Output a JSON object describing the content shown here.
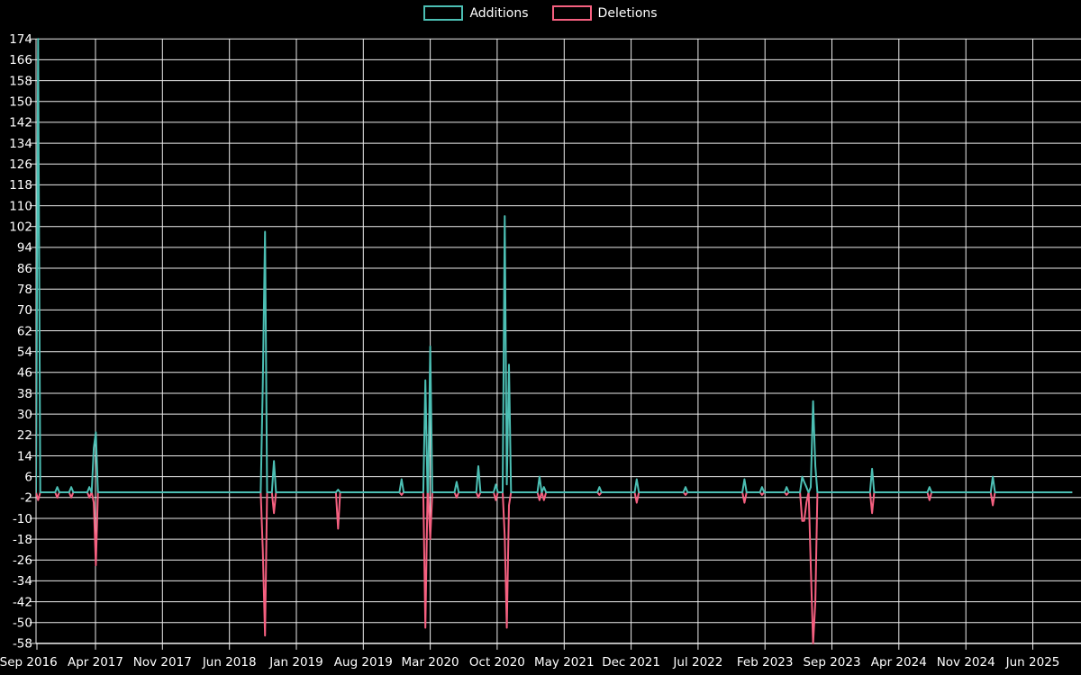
{
  "legend": {
    "items": [
      {
        "label": "Additions",
        "color": "#4cbfb4"
      },
      {
        "label": "Deletions",
        "color": "#f56080"
      }
    ]
  },
  "colors": {
    "background": "#000000",
    "grid": "#ededed",
    "text": "#ffffff",
    "additions": "#4cbfb4",
    "deletions": "#f56080"
  },
  "chart_data": {
    "type": "line",
    "title": "",
    "xlabel": "",
    "ylabel": "",
    "grid": true,
    "legend_position": "top-center",
    "x_axis": {
      "start": "2016-09-01",
      "end": "2025-10-05",
      "tick_interval_months": 7,
      "tick_labels": [
        "Sep 2016",
        "Apr 2017",
        "Nov 2017",
        "Jun 2018",
        "Jan 2019",
        "Aug 2019",
        "Mar 2020",
        "Oct 2020",
        "May 2021",
        "Dec 2021",
        "Jul 2022",
        "Feb 2023",
        "Sep 2023",
        "Apr 2024",
        "Nov 2024",
        "Jun 2025"
      ]
    },
    "y_axis": {
      "min": -58,
      "max": 174,
      "step": 8,
      "tick_labels": [
        174,
        166,
        158,
        150,
        142,
        134,
        126,
        118,
        110,
        102,
        94,
        86,
        78,
        70,
        62,
        54,
        46,
        38,
        30,
        22,
        14,
        6,
        -2,
        -10,
        -18,
        -26,
        -34,
        -42,
        -50,
        -58
      ]
    },
    "baseline": 0,
    "series_names": [
      "Additions",
      "Deletions"
    ],
    "events_format": [
      "date",
      "additions",
      "deletions"
    ],
    "events": [
      [
        "2016-10-01",
        174,
        -3
      ],
      [
        "2016-12-01",
        2,
        -2
      ],
      [
        "2017-01-15",
        2,
        -2
      ],
      [
        "2017-03-12",
        2,
        -2
      ],
      [
        "2017-03-26",
        17,
        -4
      ],
      [
        "2017-04-02",
        23,
        -28
      ],
      [
        "2018-09-16",
        41,
        -22
      ],
      [
        "2018-09-23",
        100,
        -55
      ],
      [
        "2018-10-21",
        12,
        -8
      ],
      [
        "2019-05-12",
        1,
        -14
      ],
      [
        "2019-12-01",
        5,
        -1
      ],
      [
        "2020-02-16",
        43,
        -52
      ],
      [
        "2020-03-01",
        56,
        -18
      ],
      [
        "2020-05-24",
        4,
        -2
      ],
      [
        "2020-08-02",
        10,
        -2
      ],
      [
        "2020-09-27",
        3,
        -3
      ],
      [
        "2020-10-25",
        106,
        -17
      ],
      [
        "2020-11-01",
        3,
        -52
      ],
      [
        "2020-11-08",
        49,
        -5
      ],
      [
        "2021-02-14",
        6,
        -3
      ],
      [
        "2021-02-28",
        2,
        -3
      ],
      [
        "2021-08-22",
        2,
        -1
      ],
      [
        "2021-12-19",
        5,
        -4
      ],
      [
        "2022-05-22",
        2,
        -1
      ],
      [
        "2022-11-27",
        5,
        -4
      ],
      [
        "2023-01-22",
        2,
        -1
      ],
      [
        "2023-04-09",
        2,
        -1
      ],
      [
        "2023-05-28",
        6,
        -11
      ],
      [
        "2023-06-04",
        4,
        -11
      ],
      [
        "2023-06-11",
        2,
        -4
      ],
      [
        "2023-06-25",
        2,
        -28
      ],
      [
        "2023-07-02",
        35,
        -58
      ],
      [
        "2023-07-09",
        10,
        -42
      ],
      [
        "2024-01-07",
        9,
        -8
      ],
      [
        "2024-07-07",
        2,
        -3
      ],
      [
        "2025-01-26",
        6,
        -5
      ]
    ]
  }
}
